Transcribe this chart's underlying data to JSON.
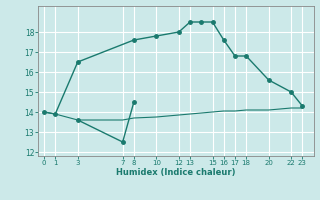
{
  "xlabel": "Humidex (Indice chaleur)",
  "background_color": "#cce9e9",
  "grid_color": "#ffffff",
  "line_color": "#1a7a6e",
  "upper_curve": {
    "x": [
      0,
      1,
      3,
      8,
      10,
      12,
      13,
      14,
      15,
      16,
      17,
      18,
      20,
      22,
      23
    ],
    "y": [
      14.0,
      13.9,
      16.5,
      17.6,
      17.8,
      18.0,
      18.5,
      18.5,
      18.5,
      17.6,
      16.8,
      16.8,
      15.6,
      15.0,
      14.3
    ]
  },
  "lower_zigzag": {
    "x": [
      3,
      7,
      8
    ],
    "y": [
      13.6,
      12.5,
      14.5
    ]
  },
  "lower_flat": {
    "x": [
      0,
      1,
      3,
      7,
      8,
      10,
      12,
      13,
      14,
      15,
      16,
      17,
      18,
      20,
      22,
      23
    ],
    "y": [
      14.0,
      13.9,
      13.6,
      13.6,
      13.7,
      13.75,
      13.85,
      13.9,
      13.95,
      14.0,
      14.05,
      14.05,
      14.1,
      14.1,
      14.2,
      14.2
    ]
  },
  "xticks": [
    0,
    1,
    3,
    7,
    8,
    10,
    12,
    13,
    15,
    16,
    17,
    18,
    20,
    22,
    23
  ],
  "yticks": [
    12,
    13,
    14,
    15,
    16,
    17,
    18
  ],
  "ylim": [
    11.8,
    19.3
  ],
  "xlim": [
    -0.5,
    24.0
  ]
}
